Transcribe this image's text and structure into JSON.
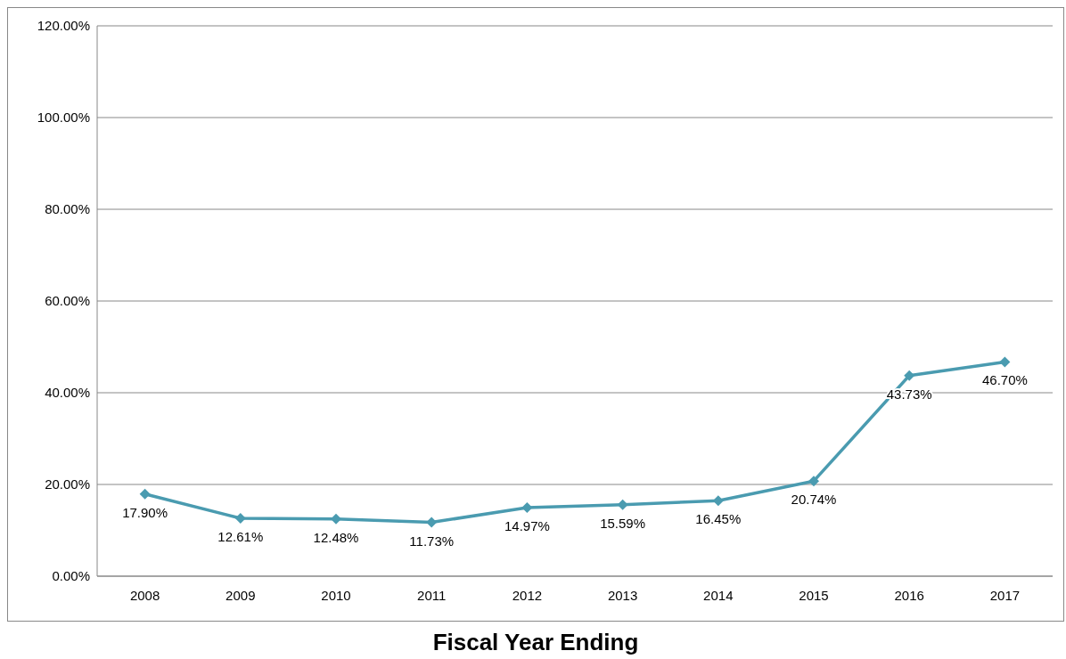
{
  "chart_data": {
    "type": "line",
    "xlabel": "Fiscal Year Ending",
    "categories": [
      "2008",
      "2009",
      "2010",
      "2011",
      "2012",
      "2013",
      "2014",
      "2015",
      "2016",
      "2017"
    ],
    "series": [
      {
        "color": "#4a9bb0",
        "values": [
          17.9,
          12.61,
          12.48,
          11.73,
          14.97,
          15.59,
          16.45,
          20.74,
          43.73,
          46.7
        ],
        "value_labels": [
          "17.90%",
          "12.61%",
          "12.48%",
          "11.73%",
          "14.97%",
          "15.59%",
          "16.45%",
          "20.74%",
          "43.73%",
          "46.70%"
        ]
      }
    ],
    "ylim": [
      0,
      120
    ],
    "yticks": [
      {
        "value": 0,
        "label": "0.00%"
      },
      {
        "value": 20,
        "label": "20.00%"
      },
      {
        "value": 40,
        "label": "40.00%"
      },
      {
        "value": 60,
        "label": "60.00%"
      },
      {
        "value": 80,
        "label": "80.00%"
      },
      {
        "value": 100,
        "label": "100.00%"
      },
      {
        "value": 120,
        "label": "120.00%"
      }
    ],
    "grid": "y",
    "legend": false,
    "marker": "diamond",
    "line_style": "solid"
  }
}
